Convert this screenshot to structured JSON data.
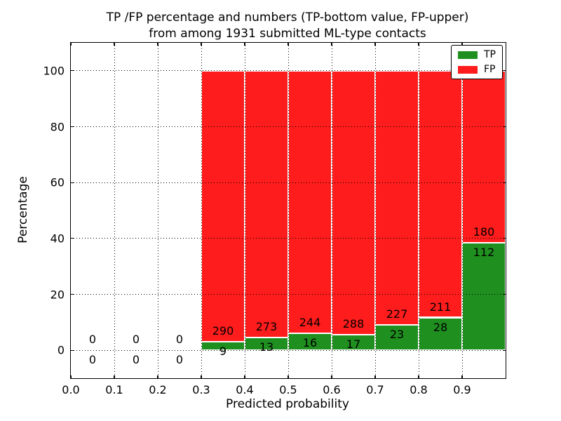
{
  "title": {
    "line1": "TP /FP percentage and numbers (TP-bottom value, FP-upper)",
    "line2": "from among 1931 submitted ML-type contacts"
  },
  "axes": {
    "xlabel": "Predicted probability",
    "ylabel": "Percentage"
  },
  "legend": {
    "items": [
      {
        "label": "TP",
        "color": "#1f8f1f"
      },
      {
        "label": "FP",
        "color": "#ff1c1c"
      }
    ]
  },
  "colors": {
    "tp": "#1f8f1f",
    "fp": "#ff1c1c",
    "grid": "#000000",
    "background": "#ffffff",
    "text": "#000000"
  },
  "chart_data": {
    "type": "bar",
    "stacked": true,
    "title": "TP /FP percentage and numbers (TP-bottom value, FP-upper) from among 1931 submitted ML-type contacts",
    "xlabel": "Predicted probability",
    "ylabel": "Percentage",
    "xlim": [
      0.0,
      1.0
    ],
    "ylim": [
      -10,
      110
    ],
    "grid": "dotted",
    "legend_position": "upper right",
    "bar_width": 0.1,
    "x_tick_values": [
      0.0,
      0.1,
      0.2,
      0.3,
      0.4,
      0.5,
      0.6,
      0.7,
      0.8,
      0.9
    ],
    "x_tick_labels": [
      "0.0",
      "0.1",
      "0.2",
      "0.3",
      "0.4",
      "0.5",
      "0.6",
      "0.7",
      "0.8",
      "0.9"
    ],
    "y_tick_values": [
      0,
      20,
      40,
      60,
      80,
      100
    ],
    "y_tick_labels": [
      "0",
      "20",
      "40",
      "60",
      "80",
      "100"
    ],
    "series": [
      {
        "name": "TP",
        "color": "#1f8f1f",
        "values": [
          0,
          0,
          0,
          9,
          13,
          16,
          17,
          23,
          28,
          112
        ]
      },
      {
        "name": "FP",
        "color": "#ff1c1c",
        "values": [
          0,
          0,
          0,
          290,
          273,
          244,
          288,
          227,
          211,
          180
        ]
      }
    ],
    "bins": [
      {
        "x_start": 0.0,
        "tp": 0,
        "fp": 0
      },
      {
        "x_start": 0.1,
        "tp": 0,
        "fp": 0
      },
      {
        "x_start": 0.2,
        "tp": 0,
        "fp": 0
      },
      {
        "x_start": 0.3,
        "tp": 9,
        "fp": 290
      },
      {
        "x_start": 0.4,
        "tp": 13,
        "fp": 273
      },
      {
        "x_start": 0.5,
        "tp": 16,
        "fp": 244
      },
      {
        "x_start": 0.6,
        "tp": 17,
        "fp": 288
      },
      {
        "x_start": 0.7,
        "tp": 23,
        "fp": 227
      },
      {
        "x_start": 0.8,
        "tp": 28,
        "fp": 211
      },
      {
        "x_start": 0.9,
        "tp": 112,
        "fp": 180
      }
    ]
  }
}
